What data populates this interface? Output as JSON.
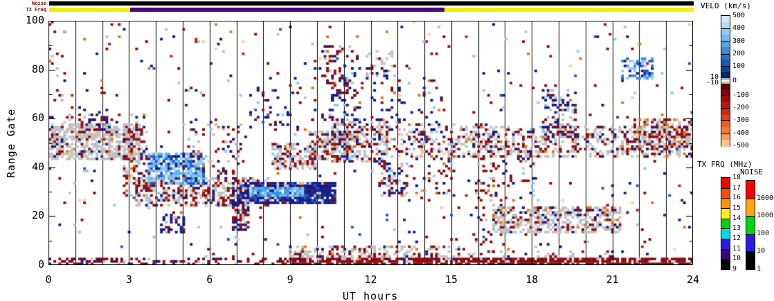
{
  "top_bars": {
    "noise_label": "Noise",
    "txfreq_label": "TX Freq",
    "noise_segments": [
      {
        "h0": 0,
        "h1": 24,
        "color": "#000000"
      }
    ],
    "txfreq_segments": [
      {
        "h0": 0,
        "h1": 3.02,
        "color": "#f2ee00"
      },
      {
        "h0": 3.02,
        "h1": 14.72,
        "color": "#44077c"
      },
      {
        "h0": 14.72,
        "h1": 24,
        "color": "#f2ee00"
      }
    ]
  },
  "chart_data": {
    "type": "heatmap",
    "xlabel": "UT hours",
    "ylabel": "Range Gate",
    "xlim": [
      0,
      24
    ],
    "ylim": [
      0,
      100
    ],
    "xticks": [
      0,
      3,
      6,
      9,
      12,
      15,
      18,
      21,
      24
    ],
    "yticks": [
      0,
      20,
      40,
      60,
      80,
      100
    ],
    "yminor_step": 10,
    "grid_every_hours": 1,
    "grid_on": true,
    "legend": "velocity colorbar right side",
    "seed": 1337,
    "grid_cols": 260,
    "grid_rows": 100,
    "palette": {
      "gray": "#c2c2c2",
      "darkred": "#8e0c12",
      "red2": "#b5281a",
      "navy": "#141a85",
      "blue": "#2456c8",
      "dodger": "#2a8fe8",
      "cyanblue": "#55b0ee",
      "lightblue": "#8fc8f2",
      "paleblue": "#c9e4f8",
      "orange": "#e2731c",
      "lightorange": "#f7cf9d"
    },
    "background_scatter": {
      "density": 0.016,
      "mix": {
        "darkred": 0.3,
        "navy": 0.2,
        "gray": 0.13,
        "lightblue": 0.09,
        "orange": 0.09,
        "lightorange": 0.07,
        "blue": 0.06,
        "red2": 0.06
      }
    },
    "features": [
      {
        "x": [
          0,
          3.35
        ],
        "g": [
          43,
          58
        ],
        "d": 0.62,
        "mix": {
          "gray": 0.74,
          "darkred": 0.13,
          "navy": 0.05,
          "orange": 0.03,
          "lightblue": 0.03,
          "lightorange": 0.02
        }
      },
      {
        "x": [
          0,
          3.3
        ],
        "g": [
          58,
          62
        ],
        "d": 0.14,
        "mix": {
          "gray": 0.5,
          "darkred": 0.3,
          "navy": 0.2
        }
      },
      {
        "x": [
          2.85,
          3.65
        ],
        "g": [
          28,
          57
        ],
        "d": 0.4,
        "mix": {
          "darkred": 0.5,
          "gray": 0.28,
          "navy": 0.12,
          "orange": 0.05,
          "lightblue": 0.05
        }
      },
      {
        "x": [
          3.3,
          8.3
        ],
        "g": [
          24,
          36
        ],
        "d": 0.5,
        "mix": {
          "darkred": 0.42,
          "gray": 0.38,
          "navy": 0.08,
          "orange": 0.05,
          "lightblue": 0.04,
          "paleblue": 0.03
        }
      },
      {
        "x": [
          3.75,
          5.75
        ],
        "g": [
          33,
          46
        ],
        "d": 0.78,
        "mix": {
          "lightblue": 0.28,
          "cyanblue": 0.3,
          "blue": 0.18,
          "paleblue": 0.12,
          "navy": 0.12
        }
      },
      {
        "x": [
          4.2,
          5.05
        ],
        "g": [
          13,
          21
        ],
        "d": 0.45,
        "mix": {
          "navy": 0.72,
          "darkred": 0.14,
          "gray": 0.14
        }
      },
      {
        "x": [
          6.85,
          7.4
        ],
        "g": [
          14,
          36
        ],
        "d": 0.6,
        "mix": {
          "navy": 0.45,
          "darkred": 0.38,
          "gray": 0.17
        }
      },
      {
        "x": [
          7.15,
          10.65
        ],
        "g": [
          25,
          34
        ],
        "d": 0.85,
        "mix": {
          "navy": 0.72,
          "blue": 0.12,
          "darkred": 0.06,
          "gray": 0.1
        }
      },
      {
        "x": [
          7.55,
          9.45
        ],
        "g": [
          28,
          32
        ],
        "d": 0.9,
        "mix": {
          "dodger": 0.3,
          "lightblue": 0.3,
          "cyanblue": 0.25,
          "paleblue": 0.15
        }
      },
      {
        "x": [
          7.3,
          9.4
        ],
        "g": [
          55,
          78
        ],
        "d": 0.1,
        "mix": {
          "navy": 0.55,
          "blue": 0.15,
          "darkred": 0.2,
          "lightblue": 0.1
        }
      },
      {
        "x": [
          8.35,
          9.9
        ],
        "g": [
          39,
          50
        ],
        "d": 0.5,
        "mix": {
          "gray": 0.6,
          "darkred": 0.24,
          "navy": 0.08,
          "orange": 0.04,
          "lightblue": 0.04
        }
      },
      {
        "x": [
          9.7,
          11.3
        ],
        "g": [
          43,
          55
        ],
        "d": 0.5,
        "mix": {
          "gray": 0.58,
          "darkred": 0.26,
          "navy": 0.08,
          "orange": 0.04,
          "lightblue": 0.04
        }
      },
      {
        "x": [
          10.6,
          12.6
        ],
        "g": [
          42,
          60
        ],
        "d": 0.5,
        "mix": {
          "darkred": 0.34,
          "gray": 0.3,
          "navy": 0.2,
          "lightblue": 0.06,
          "orange": 0.05,
          "lightorange": 0.05
        }
      },
      {
        "x": [
          12.6,
          15.05
        ],
        "g": [
          44,
          58
        ],
        "d": 0.3,
        "mix": {
          "darkred": 0.34,
          "gray": 0.3,
          "navy": 0.2,
          "lightblue": 0.06,
          "orange": 0.05,
          "lightorange": 0.05
        }
      },
      {
        "x": [
          12.3,
          13.3
        ],
        "g": [
          28,
          42
        ],
        "d": 0.3,
        "mix": {
          "darkred": 0.4,
          "navy": 0.33,
          "gray": 0.15,
          "orange": 0.06,
          "lightblue": 0.06
        }
      },
      {
        "x": [
          10.5,
          14.6
        ],
        "g": [
          58,
          78
        ],
        "d": 0.07,
        "mix": {
          "navy": 0.5,
          "darkred": 0.25,
          "lightblue": 0.15,
          "orange": 0.1
        }
      },
      {
        "x": [
          10.3,
          11.5
        ],
        "g": [
          68,
          90
        ],
        "d": 0.18,
        "mix": {
          "darkred": 0.5,
          "navy": 0.3,
          "gray": 0.2
        }
      },
      {
        "x": [
          11.9,
          12.8
        ],
        "g": [
          76,
          88
        ],
        "d": 0.2,
        "mix": {
          "gray": 0.5,
          "navy": 0.35,
          "darkred": 0.15
        }
      },
      {
        "x": [
          0,
          3.6
        ],
        "g": [
          0,
          2.6
        ],
        "d": 0.55,
        "mix": {
          "darkred": 0.6,
          "navy": 0.25,
          "gray": 0.1,
          "lightblue": 0.05
        }
      },
      {
        "x": [
          3.6,
          8.6
        ],
        "g": [
          0,
          2.2
        ],
        "d": 0.28,
        "mix": {
          "darkred": 0.6,
          "navy": 0.2,
          "gray": 0.2
        }
      },
      {
        "x": [
          8.6,
          24
        ],
        "g": [
          0,
          2.6
        ],
        "d": 0.78,
        "mix": {
          "darkred": 0.9,
          "navy": 0.05,
          "gray": 0.05
        }
      },
      {
        "x": [
          9.0,
          15.3
        ],
        "g": [
          2.5,
          7.5
        ],
        "d": 0.42,
        "mix": {
          "gray": 0.56,
          "darkred": 0.28,
          "navy": 0.1,
          "lightblue": 0.03,
          "orange": 0.03
        }
      },
      {
        "x": [
          15.3,
          21
        ],
        "g": [
          2.5,
          6
        ],
        "d": 0.2,
        "mix": {
          "darkred": 0.45,
          "gray": 0.35,
          "navy": 0.2
        }
      },
      {
        "x": [
          16.6,
          21.3
        ],
        "g": [
          13,
          24
        ],
        "d": 0.55,
        "mix": {
          "gray": 0.68,
          "darkred": 0.12,
          "navy": 0.09,
          "lightblue": 0.05,
          "orange": 0.06
        }
      },
      {
        "x": [
          15.0,
          24
        ],
        "g": [
          44,
          57
        ],
        "d": 0.38,
        "mix": {
          "gray": 0.52,
          "darkred": 0.28,
          "navy": 0.12,
          "orange": 0.04,
          "lightblue": 0.04
        }
      },
      {
        "x": [
          21.8,
          24
        ],
        "g": [
          47,
          60
        ],
        "d": 0.5,
        "mix": {
          "darkred": 0.4,
          "gray": 0.4,
          "navy": 0.12,
          "orange": 0.08
        }
      },
      {
        "x": [
          21.35,
          22.45
        ],
        "g": [
          76,
          85
        ],
        "d": 0.5,
        "mix": {
          "dodger": 0.3,
          "blue": 0.3,
          "lightblue": 0.22,
          "navy": 0.18
        }
      },
      {
        "x": [
          18.45,
          19.65
        ],
        "g": [
          52,
          72
        ],
        "d": 0.3,
        "mix": {
          "navy": 0.4,
          "gray": 0.25,
          "darkred": 0.2,
          "lightblue": 0.1,
          "orange": 0.05
        }
      },
      {
        "x": [
          15.9,
          16.55
        ],
        "g": [
          2,
          58
        ],
        "d": 0.15,
        "mix": {
          "darkred": 0.55,
          "navy": 0.22,
          "gray": 0.13,
          "orange": 0.1
        }
      },
      {
        "x": [
          1.5,
          2.25
        ],
        "g": [
          55,
          64
        ],
        "d": 0.3,
        "mix": {
          "navy": 0.7,
          "darkred": 0.2,
          "lightblue": 0.1
        }
      },
      {
        "x": [
          5.0,
          7.2
        ],
        "g": [
          36,
          60
        ],
        "d": 0.1,
        "mix": {
          "darkred": 0.4,
          "navy": 0.3,
          "gray": 0.15,
          "lightblue": 0.08,
          "orange": 0.07
        }
      },
      {
        "x": [
          9.8,
          11.6
        ],
        "g": [
          58,
          88
        ],
        "d": 0.08,
        "mix": {
          "navy": 0.55,
          "darkred": 0.25,
          "lightblue": 0.1,
          "orange": 0.1
        }
      },
      {
        "x": [
          16.5,
          18.2
        ],
        "g": [
          25,
          45
        ],
        "d": 0.12,
        "mix": {
          "darkred": 0.45,
          "navy": 0.3,
          "gray": 0.1,
          "orange": 0.08,
          "lightblue": 0.07
        }
      },
      {
        "x": [
          13.3,
          15.1
        ],
        "g": [
          25,
          45
        ],
        "d": 0.1,
        "mix": {
          "darkred": 0.45,
          "navy": 0.3,
          "gray": 0.1,
          "lightblue": 0.08,
          "orange": 0.07
        }
      },
      {
        "x": [
          0,
          0.6
        ],
        "g": [
          60,
          100
        ],
        "d": 0.05,
        "mix": {
          "darkred": 0.4,
          "navy": 0.3,
          "lightblue": 0.15,
          "orange": 0.15
        }
      }
    ]
  },
  "colorbars": {
    "velocity": {
      "title": "VELO (km/s)",
      "tick_values": [
        500,
        400,
        300,
        200,
        100,
        0,
        -100,
        -200,
        -300,
        -400,
        -500
      ],
      "side_tick_values": [
        10,
        -10
      ],
      "blue_cells": [
        "#d4eafa",
        "#b4dcf6",
        "#93ccf1",
        "#72b9ea",
        "#53a6e2",
        "#378fd5",
        "#2377c4",
        "#155dab",
        "#0b448f",
        "#052a66"
      ],
      "zero_color": "#bcbcbc",
      "red_cells": [
        "#650008",
        "#84050e",
        "#9e0e10",
        "#b81a0e",
        "#cc2c0d",
        "#dd4413",
        "#ea5e1e",
        "#f37c33",
        "#f99e56",
        "#fdc58c"
      ]
    },
    "tx_frq": {
      "title": "TX FRQ (MHz)",
      "tick_labels": [
        "18",
        "17",
        "16",
        "15",
        "14",
        "13",
        "12",
        "11",
        "10",
        "9"
      ],
      "cells": [
        "#f70000",
        "#fb4f00",
        "#ff9400",
        "#fdf300",
        "#00d412",
        "#00dce4",
        "#2a1fe0",
        "#3c0475",
        "#000000"
      ]
    },
    "noise": {
      "title": "NOISE",
      "tick_labels": [
        "10000",
        "1000",
        "100",
        "10",
        "1"
      ],
      "cells": [
        "#f70000",
        "#ffa513",
        "#00d412",
        "#2a1fe0",
        "#000000"
      ]
    }
  }
}
